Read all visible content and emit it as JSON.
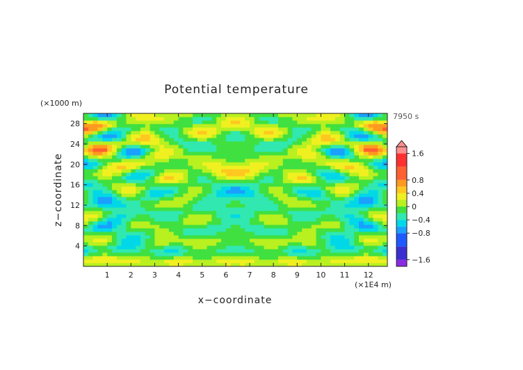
{
  "chart_data": {
    "type": "heatmap",
    "title": "Potential temperature",
    "xlabel": "x−coordinate",
    "ylabel": "z−coordinate",
    "x_unit": "(×1E4 m)",
    "y_unit": "(×1000 m)",
    "time_label": "7950 s",
    "xlim": [
      0,
      12.8
    ],
    "ylim": [
      0,
      30
    ],
    "x_ticks": [
      "1",
      "2",
      "3",
      "4",
      "5",
      "6",
      "7",
      "8",
      "9",
      "10",
      "11",
      "12"
    ],
    "y_ticks": [
      "4",
      "8",
      "12",
      "16",
      "20",
      "24",
      "28"
    ],
    "x_tick_values": [
      1,
      2,
      3,
      4,
      5,
      6,
      7,
      8,
      9,
      10,
      11,
      12
    ],
    "y_tick_values": [
      4,
      8,
      12,
      16,
      20,
      24,
      28
    ],
    "colorbar": {
      "range": [
        -1.8,
        1.8
      ],
      "labels": [
        "1.6",
        "0.8",
        "0.4",
        "0",
        "−0.4",
        "−0.8",
        "−1.6"
      ],
      "label_values": [
        1.6,
        0.8,
        0.4,
        0,
        -0.4,
        -0.8,
        -1.6
      ],
      "levels": [
        {
          "lo": -1.8,
          "hi": -1.6,
          "color": "#8a2be2"
        },
        {
          "lo": -1.6,
          "hi": -1.2,
          "color": "#3b2fd0"
        },
        {
          "lo": -1.2,
          "hi": -0.8,
          "color": "#1e5aff"
        },
        {
          "lo": -0.8,
          "hi": -0.6,
          "color": "#1aa0ff"
        },
        {
          "lo": -0.6,
          "hi": -0.4,
          "color": "#00d8e8"
        },
        {
          "lo": -0.4,
          "hi": -0.2,
          "color": "#30e8b0"
        },
        {
          "lo": -0.2,
          "hi": 0.0,
          "color": "#40e040"
        },
        {
          "lo": 0.0,
          "hi": 0.2,
          "color": "#b8f020"
        },
        {
          "lo": 0.2,
          "hi": 0.4,
          "color": "#f0f020"
        },
        {
          "lo": 0.4,
          "hi": 0.6,
          "color": "#ffc820"
        },
        {
          "lo": 0.6,
          "hi": 0.8,
          "color": "#ff9a20"
        },
        {
          "lo": 0.8,
          "hi": 1.2,
          "color": "#ff6030"
        },
        {
          "lo": 1.2,
          "hi": 1.6,
          "color": "#ff3030"
        },
        {
          "lo": 1.6,
          "hi": 1.8,
          "color": "#ff9090"
        }
      ]
    },
    "field_description": "Gravity-wave pattern: symmetric about x=6.4; oscillating positive/negative bands fanning upward from center, strong amplitudes in upper corners"
  }
}
